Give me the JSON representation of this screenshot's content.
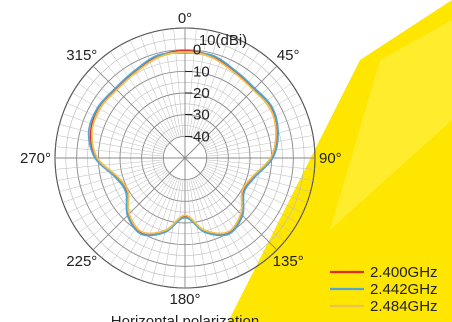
{
  "chart_data": {
    "type": "line",
    "subtype": "polar",
    "caption": "Horizontal polarization",
    "unit_label": "10(dBi)",
    "radial_range": [
      -50,
      10
    ],
    "radial_ticks": [
      "0",
      "−10",
      "−20",
      "−30",
      "−40"
    ],
    "angle_labels": [
      "0°",
      "45°",
      "90°",
      "135°",
      "180°",
      "225°",
      "270°",
      "315°"
    ],
    "angle_label_values": [
      0,
      45,
      90,
      135,
      180,
      225,
      270,
      315
    ],
    "grid": true,
    "legend_position": "bottom-right",
    "angles": [
      0,
      15,
      30,
      45,
      60,
      75,
      90,
      105,
      120,
      135,
      150,
      165,
      180,
      195,
      210,
      225,
      240,
      255,
      270,
      285,
      300,
      315,
      330,
      345
    ],
    "series": [
      {
        "name": "2.400GHz",
        "color": "#e02a1e",
        "values": [
          -0.5,
          -1.5,
          -4,
          -5,
          -4,
          -6,
          -10,
          -17,
          -19,
          -13,
          -10,
          -15,
          -23,
          -15,
          -10,
          -13,
          -19,
          -17,
          -9,
          -5,
          -4,
          -5,
          -4,
          -1.5
        ]
      },
      {
        "name": "2.442GHz",
        "color": "#4fa6d6",
        "values": [
          -1.5,
          -1,
          -3.5,
          -4.5,
          -3.5,
          -5.5,
          -9.5,
          -16.5,
          -18.5,
          -12.5,
          -9.5,
          -14.5,
          -22.5,
          -14.5,
          -9.5,
          -12.5,
          -18.5,
          -16.5,
          -8.5,
          -4,
          -3.5,
          -4.5,
          -3.5,
          -1
        ]
      },
      {
        "name": "2.484GHz",
        "color": "#f0c050",
        "values": [
          -1,
          -2,
          -4.5,
          -5.5,
          -4.5,
          -6.5,
          -10.5,
          -17.5,
          -19.5,
          -13.5,
          -10.5,
          -15.5,
          -23.5,
          -15.5,
          -10.5,
          -13.5,
          -19.5,
          -17.5,
          -9.5,
          -5.5,
          -4.5,
          -5.5,
          -4.5,
          -2
        ]
      }
    ]
  }
}
